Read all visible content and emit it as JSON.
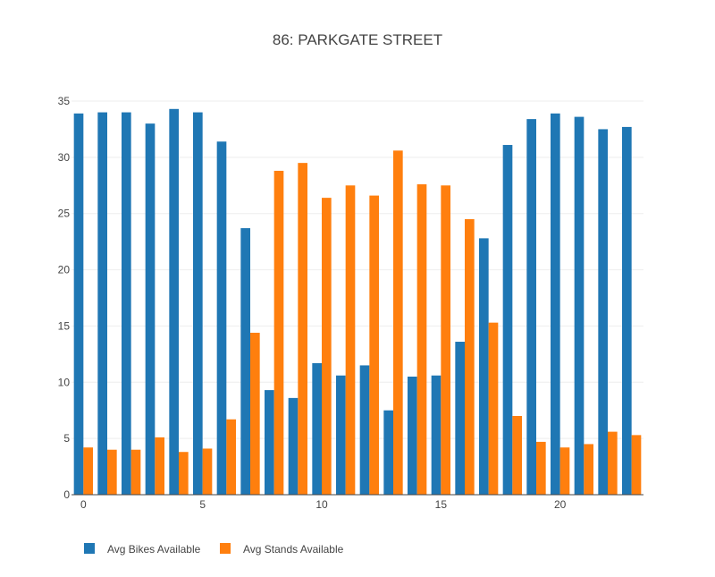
{
  "chart_data": {
    "type": "bar",
    "title": "86: PARKGATE STREET",
    "xlabel": "",
    "ylabel": "",
    "x": [
      0,
      1,
      2,
      3,
      4,
      5,
      6,
      7,
      8,
      9,
      10,
      11,
      12,
      13,
      14,
      15,
      16,
      17,
      18,
      19,
      20,
      21,
      22,
      23
    ],
    "x_ticks": [
      0,
      5,
      10,
      15,
      20
    ],
    "y_ticks": [
      0,
      5,
      10,
      15,
      20,
      25,
      30,
      35
    ],
    "xlim": [
      -0.5,
      23.5
    ],
    "ylim": [
      0,
      35
    ],
    "grid": true,
    "legend_position": "bottom-left",
    "series": [
      {
        "name": "Avg Bikes Available",
        "color": "#1f77b4",
        "values": [
          33.9,
          34.0,
          34.0,
          33.0,
          34.3,
          34.0,
          31.4,
          23.7,
          9.3,
          8.6,
          11.7,
          10.6,
          11.5,
          7.5,
          10.5,
          10.6,
          13.6,
          22.8,
          31.1,
          33.4,
          33.9,
          33.6,
          32.5,
          32.7
        ]
      },
      {
        "name": "Avg Stands Available",
        "color": "#ff7f0e",
        "values": [
          4.2,
          4.0,
          4.0,
          5.1,
          3.8,
          4.1,
          6.7,
          14.4,
          28.8,
          29.5,
          26.4,
          27.5,
          26.6,
          30.6,
          27.6,
          27.5,
          24.5,
          15.3,
          7.0,
          4.7,
          4.2,
          4.5,
          5.6,
          5.3
        ]
      }
    ]
  }
}
